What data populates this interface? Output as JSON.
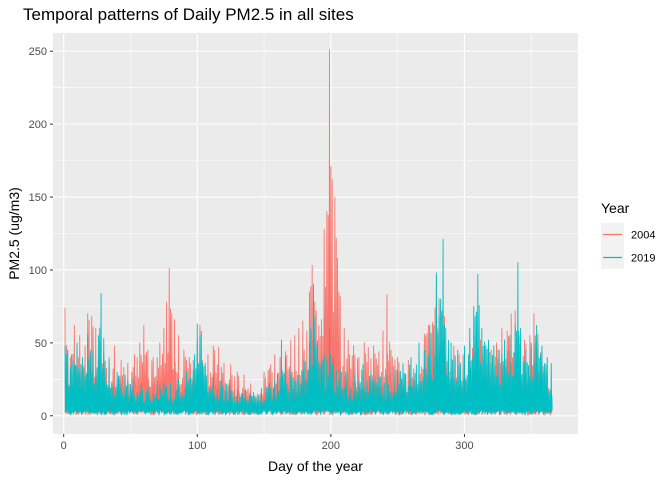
{
  "chart_data": {
    "type": "line",
    "title": "Temporal patterns of Daily PM2.5 in all sites",
    "xlabel": "Day of the year",
    "ylabel": "PM2.5 (ug/m3)",
    "xlim": [
      -8,
      385
    ],
    "ylim": [
      -12.5,
      262.5
    ],
    "x_ticks": [
      0,
      100,
      200,
      300
    ],
    "y_ticks": [
      0,
      50,
      100,
      150,
      200,
      250
    ],
    "grid": true,
    "legend_title": "Year",
    "legend_position": "right",
    "series": [
      {
        "name": "2004",
        "color": "#F8766D",
        "peaks": [
          [
            1,
            74
          ],
          [
            3,
            45
          ],
          [
            5,
            40
          ],
          [
            8,
            62
          ],
          [
            12,
            55
          ],
          [
            16,
            48
          ],
          [
            18,
            70
          ],
          [
            21,
            68
          ],
          [
            24,
            60
          ],
          [
            27,
            52
          ],
          [
            30,
            45
          ],
          [
            34,
            40
          ],
          [
            38,
            48
          ],
          [
            43,
            38
          ],
          [
            48,
            36
          ],
          [
            53,
            42
          ],
          [
            57,
            50
          ],
          [
            60,
            62
          ],
          [
            63,
            45
          ],
          [
            67,
            40
          ],
          [
            72,
            50
          ],
          [
            75,
            60
          ],
          [
            77,
            78
          ],
          [
            79,
            101
          ],
          [
            81,
            70
          ],
          [
            83,
            66
          ],
          [
            86,
            55
          ],
          [
            90,
            45
          ],
          [
            94,
            40
          ],
          [
            97,
            38
          ],
          [
            100,
            52
          ],
          [
            102,
            62
          ],
          [
            104,
            38
          ],
          [
            108,
            42
          ],
          [
            112,
            48
          ],
          [
            116,
            47
          ],
          [
            120,
            36
          ],
          [
            125,
            35
          ],
          [
            130,
            30
          ],
          [
            135,
            28
          ],
          [
            140,
            22
          ],
          [
            145,
            15
          ],
          [
            150,
            30
          ],
          [
            155,
            35
          ],
          [
            158,
            42
          ],
          [
            162,
            40
          ],
          [
            166,
            44
          ],
          [
            170,
            52
          ],
          [
            173,
            55
          ],
          [
            176,
            60
          ],
          [
            179,
            65
          ],
          [
            182,
            58
          ],
          [
            184,
            85
          ],
          [
            186,
            103
          ],
          [
            189,
            72
          ],
          [
            191,
            62
          ],
          [
            193,
            66
          ],
          [
            195,
            128
          ],
          [
            197,
            140
          ],
          [
            199,
            251
          ],
          [
            200,
            171
          ],
          [
            201,
            162
          ],
          [
            203,
            150
          ],
          [
            205,
            108
          ],
          [
            207,
            82
          ],
          [
            210,
            60
          ],
          [
            213,
            52
          ],
          [
            217,
            48
          ],
          [
            221,
            40
          ],
          [
            225,
            50
          ],
          [
            228,
            47
          ],
          [
            232,
            48
          ],
          [
            236,
            44
          ],
          [
            239,
            58
          ],
          [
            242,
            83
          ],
          [
            245,
            45
          ],
          [
            250,
            40
          ],
          [
            254,
            36
          ],
          [
            258,
            38
          ],
          [
            262,
            32
          ],
          [
            266,
            30
          ],
          [
            270,
            56
          ],
          [
            273,
            62
          ],
          [
            276,
            64
          ],
          [
            279,
            96
          ],
          [
            281,
            80
          ],
          [
            283,
            70
          ],
          [
            285,
            68
          ],
          [
            288,
            45
          ],
          [
            292,
            48
          ],
          [
            296,
            42
          ],
          [
            300,
            45
          ],
          [
            304,
            52
          ],
          [
            308,
            54
          ],
          [
            312,
            52
          ],
          [
            316,
            48
          ],
          [
            320,
            45
          ],
          [
            324,
            50
          ],
          [
            328,
            60
          ],
          [
            332,
            58
          ],
          [
            335,
            70
          ],
          [
            338,
            72
          ],
          [
            341,
            55
          ],
          [
            345,
            52
          ],
          [
            349,
            55
          ],
          [
            352,
            70
          ],
          [
            355,
            56
          ],
          [
            358,
            45
          ],
          [
            362,
            30
          ],
          [
            365,
            20
          ]
        ]
      },
      {
        "name": "2019",
        "color": "#00BFC4",
        "peaks": [
          [
            1,
            48
          ],
          [
            3,
            45
          ],
          [
            6,
            42
          ],
          [
            10,
            50
          ],
          [
            14,
            40
          ],
          [
            18,
            56
          ],
          [
            22,
            45
          ],
          [
            26,
            55
          ],
          [
            28,
            84
          ],
          [
            30,
            53
          ],
          [
            34,
            38
          ],
          [
            40,
            30
          ],
          [
            46,
            28
          ],
          [
            52,
            26
          ],
          [
            58,
            22
          ],
          [
            64,
            20
          ],
          [
            70,
            24
          ],
          [
            75,
            22
          ],
          [
            80,
            22
          ],
          [
            86,
            25
          ],
          [
            92,
            30
          ],
          [
            98,
            42
          ],
          [
            100,
            63
          ],
          [
            103,
            58
          ],
          [
            106,
            36
          ],
          [
            112,
            28
          ],
          [
            118,
            25
          ],
          [
            124,
            22
          ],
          [
            130,
            18
          ],
          [
            136,
            18
          ],
          [
            142,
            16
          ],
          [
            148,
            18
          ],
          [
            154,
            22
          ],
          [
            160,
            28
          ],
          [
            163,
            52
          ],
          [
            166,
            40
          ],
          [
            170,
            30
          ],
          [
            176,
            28
          ],
          [
            180,
            38
          ],
          [
            184,
            50
          ],
          [
            187,
            90
          ],
          [
            190,
            50
          ],
          [
            195,
            42
          ],
          [
            199,
            60
          ],
          [
            202,
            40
          ],
          [
            207,
            32
          ],
          [
            212,
            30
          ],
          [
            218,
            28
          ],
          [
            224,
            35
          ],
          [
            230,
            30
          ],
          [
            236,
            28
          ],
          [
            242,
            28
          ],
          [
            248,
            32
          ],
          [
            254,
            35
          ],
          [
            260,
            40
          ],
          [
            266,
            50
          ],
          [
            270,
            45
          ],
          [
            274,
            62
          ],
          [
            277,
            62
          ],
          [
            279,
            98
          ],
          [
            282,
            80
          ],
          [
            284,
            121
          ],
          [
            286,
            60
          ],
          [
            290,
            50
          ],
          [
            295,
            45
          ],
          [
            300,
            48
          ],
          [
            304,
            60
          ],
          [
            307,
            75
          ],
          [
            310,
            97
          ],
          [
            313,
            60
          ],
          [
            318,
            52
          ],
          [
            322,
            48
          ],
          [
            326,
            45
          ],
          [
            330,
            52
          ],
          [
            334,
            55
          ],
          [
            338,
            62
          ],
          [
            340,
            105
          ],
          [
            342,
            60
          ],
          [
            346,
            45
          ],
          [
            350,
            50
          ],
          [
            354,
            62
          ],
          [
            358,
            48
          ],
          [
            362,
            40
          ],
          [
            365,
            36
          ]
        ]
      }
    ]
  }
}
